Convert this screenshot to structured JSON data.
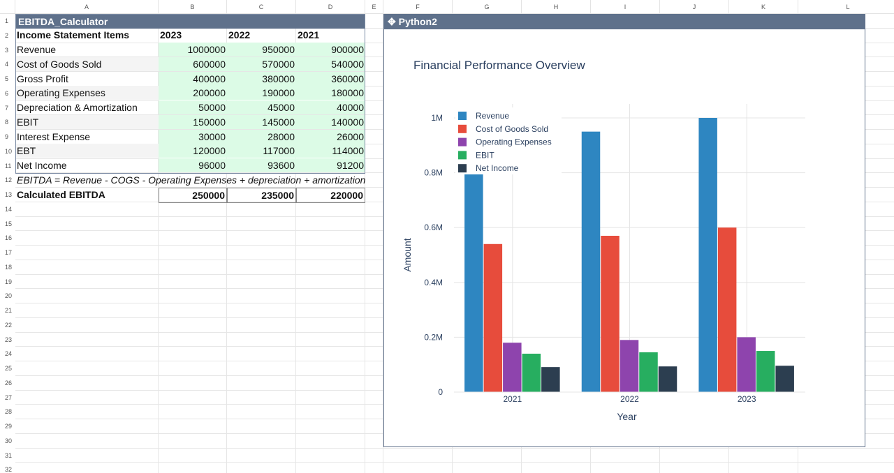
{
  "columns": [
    "A",
    "B",
    "C",
    "D",
    "E",
    "F",
    "G",
    "H",
    "I",
    "J",
    "K",
    "L"
  ],
  "rows": [
    "1",
    "2",
    "3",
    "4",
    "5",
    "6",
    "7",
    "8",
    "9",
    "10",
    "11",
    "12",
    "13",
    "14",
    "15",
    "16",
    "17",
    "18",
    "19",
    "20",
    "21",
    "22",
    "23",
    "24",
    "25",
    "26",
    "27",
    "28",
    "29",
    "30",
    "31",
    "32"
  ],
  "table": {
    "title": "EBITDA_Calculator",
    "header": [
      "Income Statement Items",
      "2023",
      "2022",
      "2021"
    ],
    "items": [
      {
        "label": "Revenue",
        "v2023": "1000000",
        "v2022": "950000",
        "v2021": "900000"
      },
      {
        "label": "Cost of Goods Sold",
        "v2023": "600000",
        "v2022": "570000",
        "v2021": "540000"
      },
      {
        "label": "Gross Profit",
        "v2023": "400000",
        "v2022": "380000",
        "v2021": "360000"
      },
      {
        "label": "Operating Expenses",
        "v2023": "200000",
        "v2022": "190000",
        "v2021": "180000"
      },
      {
        "label": "Depreciation & Amortization",
        "v2023": "50000",
        "v2022": "45000",
        "v2021": "40000"
      },
      {
        "label": "EBIT",
        "v2023": "150000",
        "v2022": "145000",
        "v2021": "140000"
      },
      {
        "label": "Interest Expense",
        "v2023": "30000",
        "v2022": "28000",
        "v2021": "26000"
      },
      {
        "label": "EBT",
        "v2023": "120000",
        "v2022": "117000",
        "v2021": "114000"
      },
      {
        "label": "Net Income",
        "v2023": "96000",
        "v2022": "93600",
        "v2021": "91200"
      }
    ],
    "formula": "EBITDA = Revenue - COGS - Operating Expenses + depreciation + amortization",
    "calc": {
      "label": "Calculated EBITDA",
      "v2023": "250000",
      "v2022": "235000",
      "v2021": "220000"
    }
  },
  "panel": {
    "title": "Python2",
    "icon": "python-icon"
  },
  "chart_data": {
    "type": "bar",
    "title": "Financial Performance Overview",
    "xlabel": "Year",
    "ylabel": "Amount",
    "categories": [
      "2021",
      "2022",
      "2023"
    ],
    "ylim": [
      0,
      1000000
    ],
    "yticks": [
      0,
      200000,
      400000,
      600000,
      800000,
      1000000
    ],
    "ytick_labels": [
      "0",
      "0.2M",
      "0.4M",
      "0.6M",
      "0.8M",
      "1M"
    ],
    "legend_position": "top-left",
    "series": [
      {
        "name": "Revenue",
        "color": "#2e86c1",
        "values": [
          900000,
          950000,
          1000000
        ]
      },
      {
        "name": "Cost of Goods Sold",
        "color": "#e74c3c",
        "values": [
          540000,
          570000,
          600000
        ]
      },
      {
        "name": "Operating Expenses",
        "color": "#8e44ad",
        "values": [
          180000,
          190000,
          200000
        ]
      },
      {
        "name": "EBIT",
        "color": "#27ae60",
        "values": [
          140000,
          145000,
          150000
        ]
      },
      {
        "name": "Net Income",
        "color": "#2c3e50",
        "values": [
          91200,
          93600,
          96000
        ]
      }
    ]
  }
}
